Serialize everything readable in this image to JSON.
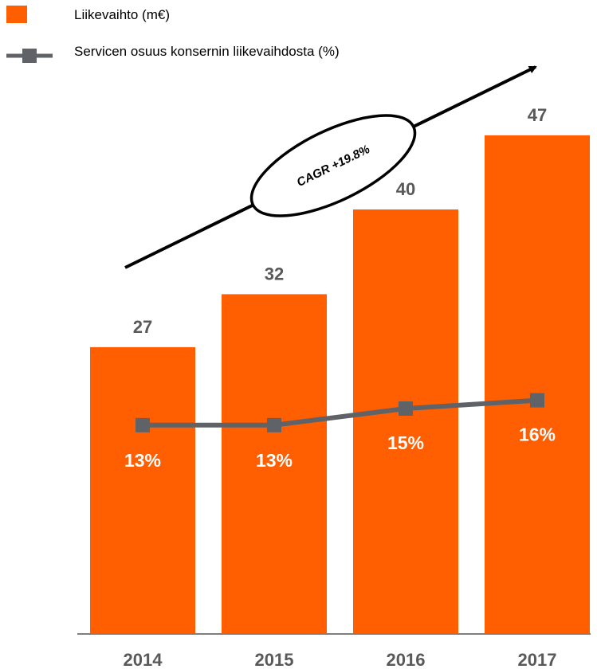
{
  "chart_data": {
    "type": "bar",
    "categories": [
      "2014",
      "2015",
      "2016",
      "2017"
    ],
    "series": [
      {
        "name": "Liikevaihto (m€)",
        "kind": "bar",
        "values": [
          27,
          32,
          40,
          47
        ],
        "color": "#FF5F00"
      },
      {
        "name": "Servicen osuus konsernin liikevaihdosta (%)",
        "kind": "line",
        "values": [
          13,
          13,
          15,
          16
        ],
        "color": "#5F6368"
      }
    ],
    "data_labels": {
      "bars": [
        "27",
        "32",
        "40",
        "47"
      ],
      "line": [
        "13%",
        "13%",
        "15%",
        "16%"
      ]
    },
    "annotation": "CAGR +19.8%",
    "legend_position": "top-left",
    "grid": false
  }
}
